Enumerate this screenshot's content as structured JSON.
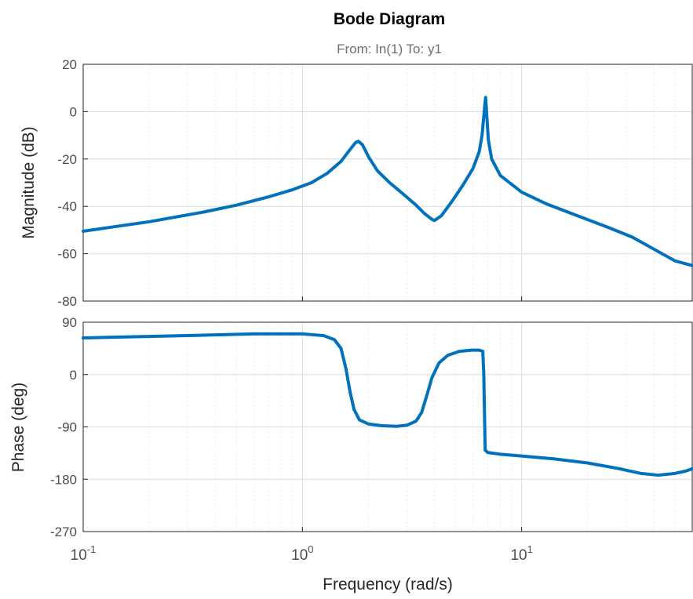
{
  "chart_data": {
    "type": "line",
    "title": "Bode Diagram",
    "subtitle": "From: In(1)  To: y1",
    "xlabel": "Frequency  (rad/s)",
    "xscale": "log",
    "xlim": [
      0.1,
      60
    ],
    "x_ticks": [
      {
        "value": 0.1,
        "base": "10",
        "exp": "-1"
      },
      {
        "value": 1,
        "base": "10",
        "exp": "0"
      },
      {
        "value": 10,
        "base": "10",
        "exp": "1"
      }
    ],
    "grid": true,
    "line_color": "#0072BD",
    "panels": [
      {
        "name": "magnitude",
        "ylabel": "Magnitude (dB)",
        "ylim": [
          -80,
          20
        ],
        "y_ticks": [
          "20",
          "0",
          "-20",
          "-40",
          "-60",
          "-80"
        ],
        "series": [
          {
            "points": [
              [
                0.1,
                -50.5
              ],
              [
                0.2,
                -46.5
              ],
              [
                0.35,
                -42.5
              ],
              [
                0.5,
                -39.5
              ],
              [
                0.7,
                -36
              ],
              [
                0.9,
                -33
              ],
              [
                1.1,
                -30
              ],
              [
                1.3,
                -26
              ],
              [
                1.5,
                -21
              ],
              [
                1.65,
                -16
              ],
              [
                1.75,
                -13
              ],
              [
                1.8,
                -12.5
              ],
              [
                1.88,
                -14
              ],
              [
                2.0,
                -19
              ],
              [
                2.2,
                -25
              ],
              [
                2.5,
                -30
              ],
              [
                2.9,
                -35
              ],
              [
                3.3,
                -39.5
              ],
              [
                3.6,
                -43
              ],
              [
                3.9,
                -45.5
              ],
              [
                4.0,
                -46
              ],
              [
                4.3,
                -44
              ],
              [
                4.8,
                -38
              ],
              [
                5.4,
                -31
              ],
              [
                6.0,
                -24
              ],
              [
                6.4,
                -17
              ],
              [
                6.6,
                -10
              ],
              [
                6.75,
                0
              ],
              [
                6.85,
                6
              ],
              [
                6.95,
                -3
              ],
              [
                7.05,
                -12
              ],
              [
                7.3,
                -20
              ],
              [
                8.0,
                -27
              ],
              [
                10,
                -34
              ],
              [
                13,
                -39
              ],
              [
                18,
                -44
              ],
              [
                25,
                -49
              ],
              [
                32,
                -53
              ],
              [
                40,
                -58
              ],
              [
                50,
                -63
              ],
              [
                60,
                -65
              ]
            ]
          }
        ]
      },
      {
        "name": "phase",
        "ylabel": "Phase (deg)",
        "ylim": [
          -270,
          90
        ],
        "y_ticks": [
          "90",
          "0",
          "-90",
          "-180",
          "-270"
        ],
        "series": [
          {
            "points": [
              [
                0.1,
                63
              ],
              [
                0.3,
                67
              ],
              [
                0.6,
                70
              ],
              [
                1.0,
                70
              ],
              [
                1.25,
                67
              ],
              [
                1.4,
                60
              ],
              [
                1.5,
                45
              ],
              [
                1.58,
                10
              ],
              [
                1.65,
                -30
              ],
              [
                1.72,
                -60
              ],
              [
                1.82,
                -78
              ],
              [
                2.0,
                -85
              ],
              [
                2.3,
                -88
              ],
              [
                2.7,
                -89
              ],
              [
                3.0,
                -87
              ],
              [
                3.3,
                -80
              ],
              [
                3.5,
                -65
              ],
              [
                3.7,
                -35
              ],
              [
                3.9,
                -5
              ],
              [
                4.2,
                20
              ],
              [
                4.6,
                33
              ],
              [
                5.2,
                40
              ],
              [
                5.9,
                42
              ],
              [
                6.4,
                42
              ],
              [
                6.65,
                40
              ],
              [
                6.72,
                0
              ],
              [
                6.78,
                -80
              ],
              [
                6.82,
                -130
              ],
              [
                7.0,
                -134
              ],
              [
                8.0,
                -137
              ],
              [
                10,
                -140
              ],
              [
                14,
                -145
              ],
              [
                20,
                -152
              ],
              [
                28,
                -162
              ],
              [
                35,
                -170
              ],
              [
                42,
                -173
              ],
              [
                50,
                -170
              ],
              [
                56,
                -166
              ],
              [
                60,
                -162
              ]
            ]
          }
        ]
      }
    ]
  }
}
